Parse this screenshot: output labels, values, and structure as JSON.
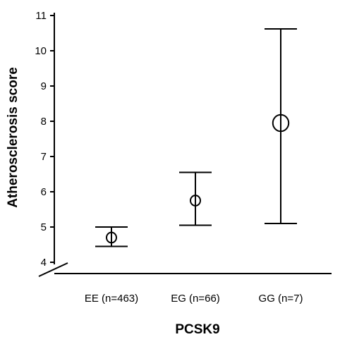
{
  "chart_data": {
    "type": "errorbar",
    "xlabel": "PCSK9",
    "ylabel": "Atherosclerosis  score",
    "categories": [
      "EE (n=463)",
      "EG (n=66)",
      "GG (n=7)"
    ],
    "series": [
      {
        "mean": [
          4.7,
          5.75,
          7.95
        ],
        "lower": [
          4.45,
          5.05,
          5.1
        ],
        "upper": [
          5.0,
          6.55,
          10.62
        ],
        "marker_size": [
          1,
          1,
          1.6
        ]
      }
    ],
    "ylim": [
      3.8,
      11.2
    ],
    "yticks": [
      4,
      5,
      6,
      7,
      8,
      9,
      10,
      11
    ],
    "axis_break": true
  }
}
